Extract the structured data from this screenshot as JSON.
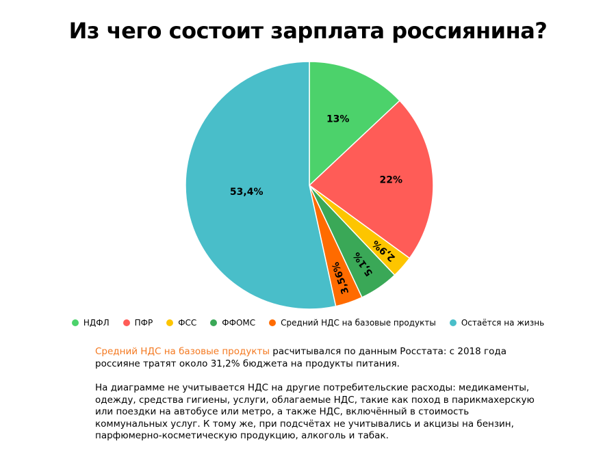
{
  "title": "Из чего состоит зарплата россиянина?",
  "chart_data": {
    "type": "pie",
    "title": "Из чего состоит зарплата россиянина?",
    "series": [
      {
        "name": "НДФЛ",
        "value": 13,
        "label": "13%",
        "color": "#4cd26b"
      },
      {
        "name": "ПФР",
        "value": 22,
        "label": "22%",
        "color": "#ff5c57"
      },
      {
        "name": "ФСС",
        "value": 2.9,
        "label": "2,9%",
        "color": "#fdc500"
      },
      {
        "name": "ФФОМС",
        "value": 5.1,
        "label": "5,1%",
        "color": "#3aa857"
      },
      {
        "name": "Средний НДС на базовые продукты",
        "value": 3.56,
        "label": "3,56%",
        "color": "#ff6b00"
      },
      {
        "name": "Остаётся на жизнь",
        "value": 53.4,
        "label": "53,4%",
        "color": "#49bec9"
      }
    ],
    "legend_position": "bottom"
  },
  "note": {
    "p1_highlight": "Средний НДС на базовые продукты",
    "p1_rest": " расчитывался по данным Росстата: с 2018 года россияне тратят около 31,2% бюджета на продукты питания.",
    "p2": "На диаграмме не учитывается НДС на другие потребительские расходы: медикаменты, одежду, средства гигиены, услуги, облагаемые НДС, такие как поход в парикмахерскую или поездки на автобусе или метро, а также НДС, включённый в стоимость коммунальных услуг. К тому же, при подсчётах не учитывались и акцизы на бензин, парфюмерно-косметическую продукцию, алкоголь и табак."
  }
}
